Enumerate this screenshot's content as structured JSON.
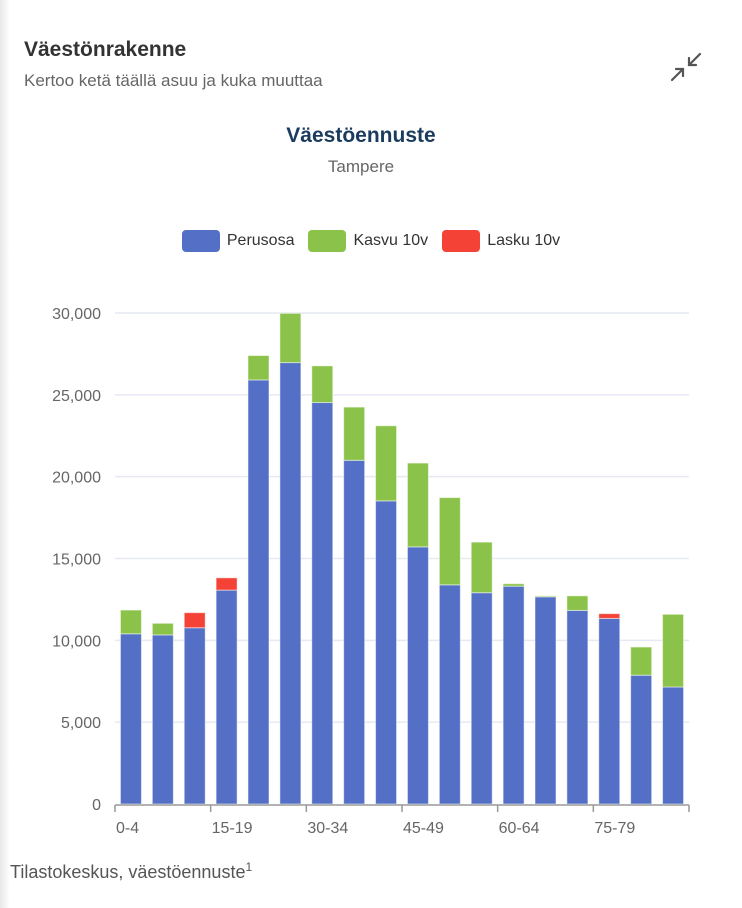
{
  "header": {
    "title": "Väestönrakenne",
    "subtitle": "Kertoo ketä täällä asuu ja kuka muuttaa",
    "collapse_icon": "collapse-arrows-icon"
  },
  "source": {
    "text": "Tilastokeskus, väestöennuste",
    "footnote": "1"
  },
  "chart_data": {
    "type": "bar",
    "stacked": true,
    "title": "Väestöennuste",
    "subtitle": "Tampere",
    "x_tick_labels": [
      "0-4",
      "15-19",
      "30-34",
      "45-49",
      "60-64",
      "75-79"
    ],
    "ylim": [
      0,
      30000
    ],
    "y_ticks": [
      "0",
      "5,000",
      "10,000",
      "15,000",
      "20,000",
      "25,000",
      "30,000"
    ],
    "grid": true,
    "legend_position": "top",
    "series": [
      {
        "name": "Perusosa",
        "color": "#5470c6",
        "values": [
          10400,
          10330,
          10770,
          13070,
          25910,
          26970,
          24530,
          21000,
          18520,
          15710,
          13390,
          12910,
          13310,
          12660,
          11830,
          11340,
          7870,
          7150
        ]
      },
      {
        "name": "Kasvu 10v",
        "color": "#8bc34a",
        "values": [
          1450,
          710,
          0,
          0,
          1490,
          3010,
          2240,
          3250,
          4590,
          5120,
          5330,
          3090,
          150,
          60,
          890,
          0,
          1720,
          4440
        ]
      },
      {
        "name": "Lasku 10v",
        "color": "#f44336",
        "values": [
          0,
          0,
          920,
          750,
          0,
          0,
          0,
          0,
          0,
          0,
          0,
          0,
          0,
          0,
          0,
          290,
          0,
          0
        ]
      }
    ]
  }
}
